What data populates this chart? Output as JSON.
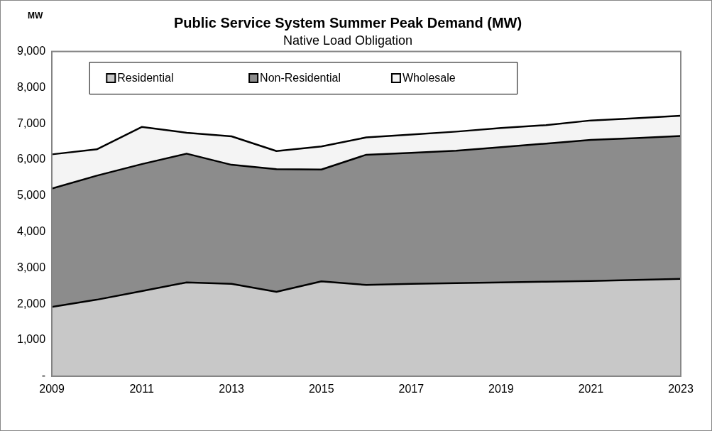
{
  "chart_data": {
    "type": "area",
    "title": "Public Service System Summer Peak Demand (MW)",
    "subtitle": "Native Load Obligation",
    "ylabel": "MW",
    "stacked": true,
    "legend": "top",
    "x": [
      2009,
      2010,
      2011,
      2012,
      2013,
      2014,
      2015,
      2016,
      2017,
      2018,
      2019,
      2020,
      2021,
      2022,
      2023
    ],
    "xlim": [
      2009,
      2023
    ],
    "xticks": [
      2009,
      2011,
      2013,
      2015,
      2017,
      2019,
      2021,
      2023
    ],
    "ylim": [
      0,
      9000
    ],
    "yticks": [
      {
        "value": 0,
        "label": "-"
      },
      {
        "value": 1000,
        "label": "1,000"
      },
      {
        "value": 2000,
        "label": "2,000"
      },
      {
        "value": 3000,
        "label": "3,000"
      },
      {
        "value": 4000,
        "label": "4,000"
      },
      {
        "value": 5000,
        "label": "5,000"
      },
      {
        "value": 6000,
        "label": "6,000"
      },
      {
        "value": 7000,
        "label": "7,000"
      },
      {
        "value": 8000,
        "label": "8,000"
      },
      {
        "value": 9000,
        "label": "9,000"
      }
    ],
    "series": [
      {
        "name": "Residential",
        "color": "#c8c8c8",
        "values": [
          1920,
          2120,
          2360,
          2600,
          2560,
          2340,
          2630,
          2530,
          2560,
          2580,
          2600,
          2620,
          2640,
          2670,
          2700
        ]
      },
      {
        "name": "Non-Residential",
        "color": "#8c8c8c",
        "values": [
          3280,
          3440,
          3520,
          3570,
          3300,
          3400,
          3100,
          3610,
          3630,
          3670,
          3750,
          3830,
          3910,
          3930,
          3960
        ]
      },
      {
        "name": "Wholesale",
        "color": "#f4f4f4",
        "values": [
          950,
          730,
          1030,
          580,
          790,
          500,
          640,
          480,
          510,
          530,
          530,
          510,
          540,
          550,
          560
        ]
      }
    ]
  }
}
